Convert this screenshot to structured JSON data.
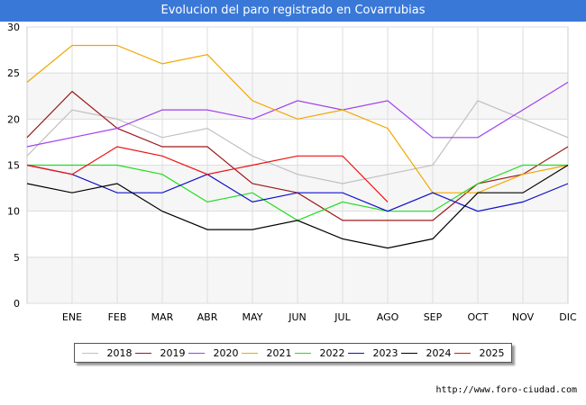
{
  "title": "Evolucion del paro registrado en Covarrubias",
  "source": "http://www.foro-ciudad.com",
  "chart_data": {
    "type": "line",
    "categories": [
      "",
      "ENE",
      "FEB",
      "MAR",
      "ABR",
      "MAY",
      "JUN",
      "JUL",
      "AGO",
      "SEP",
      "OCT",
      "NOV",
      "DIC"
    ],
    "ylim": [
      0,
      30
    ],
    "yticks": [
      0,
      5,
      10,
      15,
      20,
      25,
      30
    ],
    "grid": true,
    "legend_position": "bottom",
    "series": [
      {
        "name": "2018",
        "color": "#c0c0c0",
        "values": [
          16,
          21,
          20,
          18,
          19,
          16,
          14,
          13,
          14,
          15,
          22,
          20,
          18
        ]
      },
      {
        "name": "2019",
        "color": "#9b1b1b",
        "values": [
          18,
          23,
          19,
          17,
          17,
          13,
          12,
          9,
          9,
          9,
          13,
          14,
          17
        ]
      },
      {
        "name": "2020",
        "color": "#a040ee",
        "values": [
          17,
          18,
          19,
          21,
          21,
          20,
          22,
          21,
          22,
          18,
          18,
          21,
          24
        ]
      },
      {
        "name": "2021",
        "color": "#f0a800",
        "values": [
          24,
          28,
          28,
          26,
          27,
          22,
          20,
          21,
          19,
          12,
          12,
          14,
          15
        ]
      },
      {
        "name": "2022",
        "color": "#22dd22",
        "values": [
          15,
          15,
          15,
          14,
          11,
          12,
          9,
          11,
          10,
          10,
          13,
          15,
          15
        ]
      },
      {
        "name": "2023",
        "color": "#1010cc",
        "values": [
          15,
          14,
          12,
          12,
          14,
          11,
          12,
          12,
          10,
          12,
          10,
          11,
          13
        ]
      },
      {
        "name": "2024",
        "color": "#000000",
        "values": [
          13,
          12,
          13,
          10,
          8,
          8,
          9,
          7,
          6,
          7,
          12,
          12,
          15
        ]
      },
      {
        "name": "2025",
        "color": "#ee1111",
        "values": [
          15,
          14,
          17,
          16,
          14,
          15,
          16,
          16,
          11,
          null,
          null,
          null,
          null
        ]
      }
    ]
  }
}
